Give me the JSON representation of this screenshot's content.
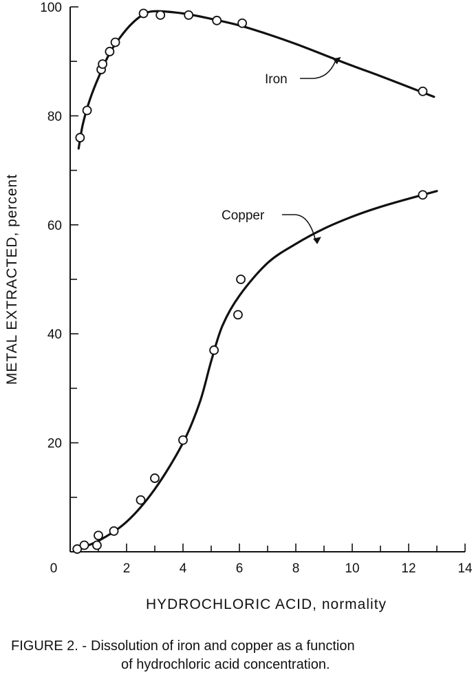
{
  "chart_data": {
    "type": "line",
    "xlabel": "HYDROCHLORIC ACID, normality",
    "ylabel": "METAL EXTRACTED, percent",
    "xlim": [
      0,
      14
    ],
    "ylim": [
      0,
      100
    ],
    "x_ticks": [
      0,
      2,
      4,
      6,
      8,
      10,
      12,
      14
    ],
    "y_ticks": [
      20,
      40,
      60,
      80,
      100
    ],
    "x_tick_labels": [
      "0",
      "2",
      "4",
      "6",
      "8",
      "10",
      "12",
      "14"
    ],
    "y_tick_labels": [
      "20",
      "40",
      "60",
      "80",
      "100"
    ],
    "grid": false,
    "series": [
      {
        "name": "Iron",
        "points": [
          [
            0.35,
            76
          ],
          [
            0.6,
            81
          ],
          [
            1.1,
            88.5
          ],
          [
            1.15,
            89.5
          ],
          [
            1.4,
            91.8
          ],
          [
            1.6,
            93.5
          ],
          [
            2.6,
            98.8
          ],
          [
            3.2,
            98.5
          ],
          [
            4.2,
            98.5
          ],
          [
            5.2,
            97.5
          ],
          [
            6.1,
            97
          ],
          [
            12.5,
            84.5
          ]
        ],
        "curve": [
          [
            0.3,
            74
          ],
          [
            0.45,
            78.5
          ],
          [
            0.7,
            83
          ],
          [
            1.0,
            87
          ],
          [
            1.4,
            91.5
          ],
          [
            1.8,
            94.6
          ],
          [
            2.2,
            97
          ],
          [
            2.6,
            98.6
          ],
          [
            3.0,
            99.2
          ],
          [
            4.0,
            98.8
          ],
          [
            5.0,
            97.8
          ],
          [
            6.0,
            96.6
          ],
          [
            7.0,
            95
          ],
          [
            8.0,
            93.2
          ],
          [
            9.0,
            91.2
          ],
          [
            10.0,
            89.2
          ],
          [
            11.0,
            87.3
          ],
          [
            12.0,
            85.3
          ],
          [
            12.9,
            83.5
          ]
        ]
      },
      {
        "name": "Copper",
        "points": [
          [
            0.25,
            0.5
          ],
          [
            0.5,
            1.2
          ],
          [
            0.95,
            1.2
          ],
          [
            1.0,
            3
          ],
          [
            1.55,
            3.8
          ],
          [
            2.5,
            9.5
          ],
          [
            3.0,
            13.5
          ],
          [
            4.0,
            20.5
          ],
          [
            5.1,
            37
          ],
          [
            5.95,
            43.5
          ],
          [
            6.05,
            50
          ],
          [
            12.5,
            65.5
          ]
        ],
        "curve": [
          [
            0.3,
            0.6
          ],
          [
            1.0,
            2
          ],
          [
            2.0,
            5.5
          ],
          [
            3.0,
            11.5
          ],
          [
            4.0,
            20
          ],
          [
            4.6,
            27.5
          ],
          [
            5.0,
            35
          ],
          [
            5.4,
            41.5
          ],
          [
            6.0,
            47
          ],
          [
            7.0,
            53
          ],
          [
            8.0,
            56.5
          ],
          [
            9.0,
            59.3
          ],
          [
            10.0,
            61.5
          ],
          [
            11.0,
            63.3
          ],
          [
            12.0,
            64.8
          ],
          [
            13.0,
            66.2
          ]
        ]
      }
    ],
    "annotations": [
      {
        "text": "Iron",
        "arrow_to": [
          9.6,
          90.8
        ]
      },
      {
        "text": "Copper",
        "arrow_to": [
          8.9,
          57.8
        ]
      }
    ]
  },
  "caption": {
    "prefix": "FIGURE 2. -",
    "line1": "Dissolution of iron and copper as a function",
    "line2": "of hydrochloric acid concentration."
  }
}
